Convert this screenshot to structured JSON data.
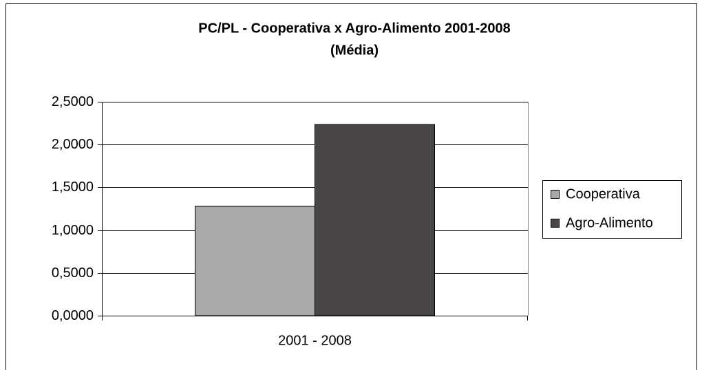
{
  "chart_data": {
    "type": "bar",
    "title": "PC/PL - Cooperativa x Agro-Alimento 2001-2008",
    "subtitle": "(Média)",
    "categories": [
      "2001 - 2008"
    ],
    "series": [
      {
        "name": "Cooperativa",
        "color": "#a9a9a9",
        "values": [
          1.278
        ]
      },
      {
        "name": "Agro-Alimento",
        "color": "#4a4645",
        "values": [
          2.235
        ]
      }
    ],
    "ylim": [
      0,
      2.5
    ],
    "yticks": [
      {
        "value": 0,
        "label": "0,0000"
      },
      {
        "value": 0.5,
        "label": "0,5000"
      },
      {
        "value": 1,
        "label": "1,0000"
      },
      {
        "value": 1.5,
        "label": "1,5000"
      },
      {
        "value": 2,
        "label": "2,0000"
      },
      {
        "value": 2.5,
        "label": "2,5000"
      }
    ],
    "grid": true,
    "legend": "right"
  }
}
